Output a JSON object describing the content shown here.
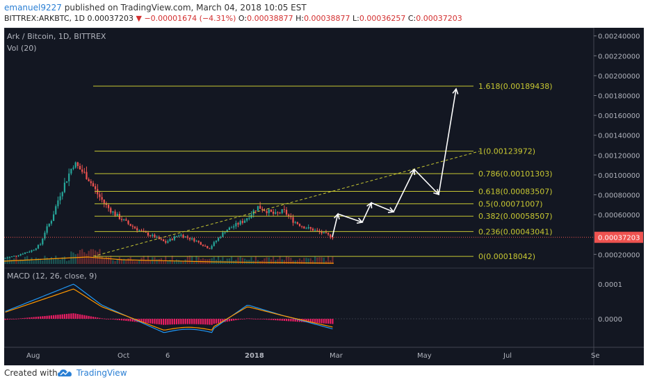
{
  "header": {
    "user": "emanuel9227",
    "published": " published on TradingView.com, March 04, 2018 10:05 EST",
    "symbol": "BITTREX:ARKBTC, 1D",
    "last": "0.00037203",
    "change_arrow": "▼",
    "change": "−0.00001674 (−4.31%)",
    "o_label": "O:",
    "o_value": "0.00038877",
    "h_label": "H:",
    "h_value": "0.00038877",
    "l_label": "L:",
    "l_value": "0.00036257",
    "c_label": "C:",
    "c_value": "0.00037203"
  },
  "chart": {
    "title": "Ark / Bitcoin, 1D, BITTREX",
    "vol_label": "Vol (20)",
    "macd_label": "MACD (12, 26, close, 9)",
    "price_tag": "0.00037203"
  },
  "footer": {
    "created": "Created with",
    "brand": "TradingView"
  },
  "colors": {
    "background": "#131722",
    "candle_up": "#26a69a",
    "candle_down": "#ef5350",
    "fib": "#c8c832",
    "macd": "#2196f3",
    "signal": "#ff9800",
    "hist": "#e91e63",
    "price_tag": "#ef5350"
  },
  "chart_data": {
    "type": "candlestick",
    "title": "Ark / Bitcoin, 1D, BITTREX",
    "x_ticks": [
      "Aug",
      "Oct",
      "6",
      "2018",
      "Mar",
      "May",
      "Jul",
      "Se"
    ],
    "y_ticks": [
      "0.00240000",
      "0.00220000",
      "0.00200000",
      "0.00180000",
      "0.00160000",
      "0.00140000",
      "0.00120000",
      "0.00100000",
      "0.00080000",
      "0.00060000",
      "0.00020000"
    ],
    "ylim": [
      2e-05,
      0.00244
    ],
    "price_series_approx": [
      {
        "x": "Jul",
        "y": 0.00016
      },
      {
        "x": "Aug",
        "y": 0.00022
      },
      {
        "x": "early Sep",
        "y": 0.0004
      },
      {
        "x": "mid Sep",
        "y": 0.00112
      },
      {
        "x": "late Sep",
        "y": 0.0008
      },
      {
        "x": "Oct",
        "y": 0.00062
      },
      {
        "x": "late Oct",
        "y": 0.0005
      },
      {
        "x": "Nov",
        "y": 0.0003
      },
      {
        "x": "Dec",
        "y": 0.0004
      },
      {
        "x": "mid Dec",
        "y": 0.00025
      },
      {
        "x": "late Dec",
        "y": 0.00048
      },
      {
        "x": "Jan",
        "y": 0.00068
      },
      {
        "x": "Feb",
        "y": 0.00062
      },
      {
        "x": "late Feb",
        "y": 0.00042
      },
      {
        "x": "Mar",
        "y": 0.00037203
      }
    ],
    "fibonacci_levels": [
      {
        "label": "1.618(0.00189438)",
        "value": 0.00189438
      },
      {
        "label": "1(0.00123972)",
        "value": 0.00123972
      },
      {
        "label": "0.786(0.00101303)",
        "value": 0.00101303
      },
      {
        "label": "0.618(0.00083507)",
        "value": 0.00083507
      },
      {
        "label": "0.5(0.00071007)",
        "value": 0.00071007
      },
      {
        "label": "0.382(0.00058507)",
        "value": 0.00058507
      },
      {
        "label": "0.236(0.00043041)",
        "value": 0.00043041
      },
      {
        "label": "0(0.00018042)",
        "value": 0.00018042
      }
    ],
    "last_price": 0.00037203,
    "macd": {
      "y_ticks": [
        "0.0001",
        "0.0000"
      ],
      "note": "MACD and signal lines with histogram"
    }
  }
}
